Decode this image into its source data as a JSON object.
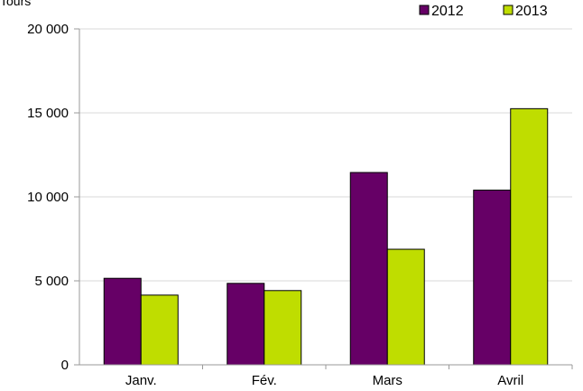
{
  "chart_data": {
    "type": "bar",
    "ylabel": "Tours",
    "categories": [
      "Janv.",
      "Fév.",
      "Mars",
      "Avril"
    ],
    "series": [
      {
        "name": "2012",
        "values": [
          5150,
          4850,
          11450,
          10400
        ],
        "color": "#660066"
      },
      {
        "name": "2013",
        "values": [
          4150,
          4420,
          6880,
          15250
        ],
        "color": "#bfdd00"
      }
    ],
    "ylim": [
      0,
      20000
    ],
    "yticks": [
      0,
      5000,
      10000,
      15000,
      20000
    ],
    "ytick_labels": [
      "0",
      "5 000",
      "10 000",
      "15 000",
      "20 000"
    ],
    "grid": true,
    "legend": "top-right"
  }
}
